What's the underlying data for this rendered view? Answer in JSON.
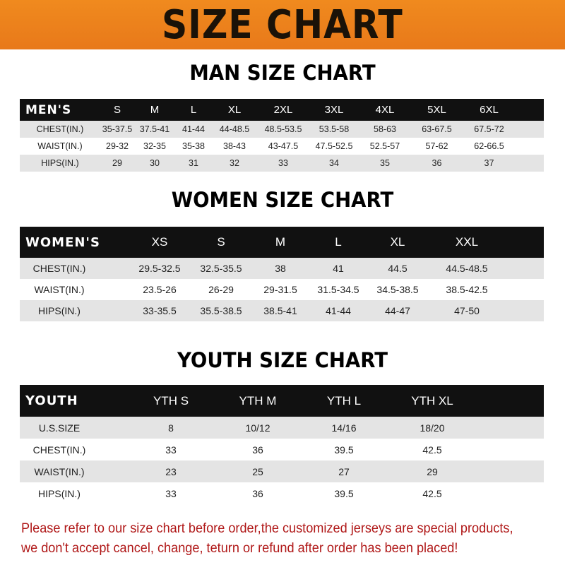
{
  "banner_title": "SIZE CHART",
  "men": {
    "title": "MAN SIZE CHART",
    "header": [
      "MEN'S",
      "S",
      "M",
      "L",
      "XL",
      "2XL",
      "3XL",
      "4XL",
      "5XL",
      "6XL"
    ],
    "rows": [
      [
        "CHEST(IN.)",
        "35-37.5",
        "37.5-41",
        "41-44",
        "44-48.5",
        "48.5-53.5",
        "53.5-58",
        "58-63",
        "63-67.5",
        "67.5-72"
      ],
      [
        "WAIST(IN.)",
        "29-32",
        "32-35",
        "35-38",
        "38-43",
        "43-47.5",
        "47.5-52.5",
        "52.5-57",
        "57-62",
        "62-66.5"
      ],
      [
        "HIPS(IN.)",
        "29",
        "30",
        "31",
        "32",
        "33",
        "34",
        "35",
        "36",
        "37"
      ]
    ]
  },
  "women": {
    "title": "WOMEN SIZE CHART",
    "header": [
      "WOMEN'S",
      "XS",
      "S",
      "M",
      "L",
      "XL",
      "XXL"
    ],
    "rows": [
      [
        "CHEST(IN.)",
        "29.5-32.5",
        "32.5-35.5",
        "38",
        "41",
        "44.5",
        "44.5-48.5"
      ],
      [
        "WAIST(IN.)",
        "23.5-26",
        "26-29",
        "29-31.5",
        "31.5-34.5",
        "34.5-38.5",
        "38.5-42.5"
      ],
      [
        "HIPS(IN.)",
        "33-35.5",
        "35.5-38.5",
        "38.5-41",
        "41-44",
        "44-47",
        "47-50"
      ]
    ]
  },
  "youth": {
    "title": "YOUTH SIZE CHART",
    "header": [
      "YOUTH",
      "YTH S",
      "YTH M",
      "YTH L",
      "YTH XL"
    ],
    "rows": [
      [
        "U.S.SIZE",
        "8",
        "10/12",
        "14/16",
        "18/20"
      ],
      [
        "CHEST(IN.)",
        "33",
        "36",
        "39.5",
        "42.5"
      ],
      [
        "WAIST(IN.)",
        "23",
        "25",
        "27",
        "29"
      ],
      [
        "HIPS(IN.)",
        "33",
        "36",
        "39.5",
        "42.5"
      ]
    ]
  },
  "notice": {
    "line1": "Please refer to our size chart before order,the customized jerseys are special products,",
    "line2": "we don't accept cancel, change, teturn or refund after order has been placed!"
  },
  "colors": {
    "banner": "#f08a1e",
    "header_row": "#111111",
    "stripe": "#e4e4e4",
    "notice": "#b01818"
  }
}
